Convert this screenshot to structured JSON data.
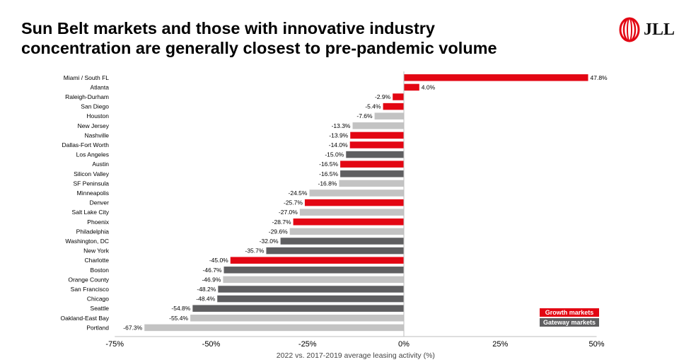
{
  "header": {
    "title_line1": "Sun Belt markets and those with innovative industry",
    "title_line2": "concentration are generally closest to pre-pandemic volume",
    "logo_text": "JLL"
  },
  "colors": {
    "growth": "#e30613",
    "gateway": "#5f5f61",
    "other": "#c3c3c3",
    "logo_red": "#e30613"
  },
  "legend": {
    "growth_label": "Growth markets",
    "gateway_label": "Gateway markets"
  },
  "chart_data": {
    "type": "bar",
    "orientation": "horizontal",
    "title": "Sun Belt markets and those with innovative industry concentration are generally closest to pre-pandemic volume",
    "xlabel": "2022 vs. 2017-2019 average leasing activity (%)",
    "ylabel": "",
    "xlim": [
      -75,
      50
    ],
    "xticks": [
      -75,
      -50,
      -25,
      0,
      25,
      50
    ],
    "xtick_labels": [
      "-75%",
      "-50%",
      "-25%",
      "0%",
      "25%",
      "50%"
    ],
    "legend_position": "bottom-right",
    "categories": [
      "Miami / South FL",
      "Atlanta",
      "Raleigh-Durham",
      "San Diego",
      "Houston",
      "New Jersey",
      "Nashville",
      "Dallas-Fort Worth",
      "Los Angeles",
      "Austin",
      "Silicon Valley",
      "SF Peninsula",
      "Minneapolis",
      "Denver",
      "Salt Lake City",
      "Phoenix",
      "Philadelphia",
      "Washington, DC",
      "New York",
      "Charlotte",
      "Boston",
      "Orange County",
      "San Francisco",
      "Chicago",
      "Seattle",
      "Oakland-East Bay",
      "Portland"
    ],
    "values": [
      47.8,
      4.0,
      -2.9,
      -5.4,
      -7.6,
      -13.3,
      -13.9,
      -14.0,
      -15.0,
      -16.5,
      -16.5,
      -16.8,
      -24.5,
      -25.7,
      -27.0,
      -28.7,
      -29.6,
      -32.0,
      -35.7,
      -45.0,
      -46.7,
      -46.9,
      -48.2,
      -48.4,
      -54.8,
      -55.4,
      -67.3
    ],
    "value_labels": [
      "47.8%",
      "4.0%",
      "-2.9%",
      "-5.4%",
      "-7.6%",
      "-13.3%",
      "-13.9%",
      "-14.0%",
      "-15.0%",
      "-16.5%",
      "-16.5%",
      "-16.8%",
      "-24.5%",
      "-25.7%",
      "-27.0%",
      "-28.7%",
      "-29.6%",
      "-32.0%",
      "-35.7%",
      "-45.0%",
      "-46.7%",
      "-46.9%",
      "-48.2%",
      "-48.4%",
      "-54.8%",
      "-55.4%",
      "-67.3%"
    ],
    "groups": [
      "growth",
      "growth",
      "growth",
      "growth",
      "other",
      "other",
      "growth",
      "growth",
      "gateway",
      "growth",
      "gateway",
      "other",
      "other",
      "growth",
      "other",
      "growth",
      "other",
      "gateway",
      "gateway",
      "growth",
      "gateway",
      "other",
      "gateway",
      "gateway",
      "gateway",
      "other",
      "other"
    ]
  }
}
